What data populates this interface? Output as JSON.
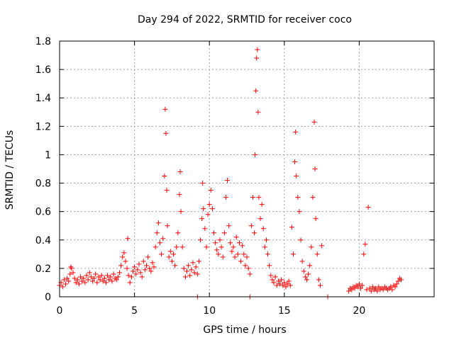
{
  "chart_data": {
    "type": "scatter",
    "title": "Day 294 of 2022, SRMTID for receiver coco",
    "xlabel": "GPS time / hours",
    "ylabel": "SRMTID / TECUs",
    "xlim": [
      0,
      25
    ],
    "ylim": [
      0,
      1.8
    ],
    "xticks": [
      0,
      5,
      10,
      15,
      20
    ],
    "xtick_labels": [
      "0",
      "5",
      "10",
      "15",
      "20"
    ],
    "yticks": [
      0,
      0.2,
      0.4,
      0.6,
      0.8,
      1.0,
      1.2,
      1.4,
      1.6,
      1.8
    ],
    "ytick_labels": [
      "0",
      "0.2",
      "0.4",
      "0.6",
      "0.8",
      "1",
      "1.2",
      "1.4",
      "1.6",
      "1.8"
    ],
    "grid": true,
    "marker": "+",
    "color": "#ff0000",
    "series": [
      {
        "name": "SRMTID",
        "points": [
          [
            0.0,
            0.08
          ],
          [
            0.1,
            0.1
          ],
          [
            0.2,
            0.07
          ],
          [
            0.3,
            0.12
          ],
          [
            0.4,
            0.09
          ],
          [
            0.5,
            0.13
          ],
          [
            0.6,
            0.11
          ],
          [
            0.7,
            0.16
          ],
          [
            0.75,
            0.21
          ],
          [
            0.8,
            0.2
          ],
          [
            0.9,
            0.17
          ],
          [
            1.0,
            0.13
          ],
          [
            1.1,
            0.1
          ],
          [
            1.2,
            0.12
          ],
          [
            1.3,
            0.09
          ],
          [
            1.4,
            0.14
          ],
          [
            1.5,
            0.11
          ],
          [
            1.6,
            0.13
          ],
          [
            1.7,
            0.1
          ],
          [
            1.8,
            0.15
          ],
          [
            1.9,
            0.12
          ],
          [
            2.0,
            0.17
          ],
          [
            2.1,
            0.14
          ],
          [
            2.2,
            0.11
          ],
          [
            2.3,
            0.13
          ],
          [
            2.4,
            0.16
          ],
          [
            2.5,
            0.1
          ],
          [
            2.6,
            0.14
          ],
          [
            2.7,
            0.12
          ],
          [
            2.8,
            0.15
          ],
          [
            2.9,
            0.11
          ],
          [
            3.0,
            0.13
          ],
          [
            3.1,
            0.1
          ],
          [
            3.2,
            0.15
          ],
          [
            3.3,
            0.12
          ],
          [
            3.4,
            0.14
          ],
          [
            3.5,
            0.11
          ],
          [
            3.6,
            0.16
          ],
          [
            3.7,
            0.13
          ],
          [
            3.8,
            0.12
          ],
          [
            3.9,
            0.14
          ],
          [
            4.0,
            0.17
          ],
          [
            4.1,
            0.22
          ],
          [
            4.2,
            0.28
          ],
          [
            4.3,
            0.31
          ],
          [
            4.4,
            0.25
          ],
          [
            4.5,
            0.2
          ],
          [
            4.55,
            0.41
          ],
          [
            4.6,
            0.15
          ],
          [
            4.7,
            0.1
          ],
          [
            4.8,
            0.14
          ],
          [
            4.9,
            0.18
          ],
          [
            5.0,
            0.21
          ],
          [
            5.1,
            0.16
          ],
          [
            5.2,
            0.19
          ],
          [
            5.3,
            0.23
          ],
          [
            5.4,
            0.17
          ],
          [
            5.5,
            0.14
          ],
          [
            5.6,
            0.25
          ],
          [
            5.7,
            0.19
          ],
          [
            5.8,
            0.22
          ],
          [
            5.9,
            0.28
          ],
          [
            6.0,
            0.2
          ],
          [
            6.1,
            0.18
          ],
          [
            6.2,
            0.24
          ],
          [
            6.3,
            0.21
          ],
          [
            6.4,
            0.35
          ],
          [
            6.5,
            0.45
          ],
          [
            6.6,
            0.52
          ],
          [
            6.7,
            0.38
          ],
          [
            6.8,
            0.3
          ],
          [
            6.9,
            0.41
          ],
          [
            7.0,
            0.85
          ],
          [
            7.05,
            1.32
          ],
          [
            7.1,
            1.15
          ],
          [
            7.15,
            0.75
          ],
          [
            7.2,
            0.5
          ],
          [
            7.3,
            0.28
          ],
          [
            7.4,
            0.32
          ],
          [
            7.5,
            0.25
          ],
          [
            7.6,
            0.3
          ],
          [
            7.7,
            0.22
          ],
          [
            7.8,
            0.35
          ],
          [
            7.9,
            0.45
          ],
          [
            8.0,
            0.72
          ],
          [
            8.05,
            0.88
          ],
          [
            8.1,
            0.6
          ],
          [
            8.2,
            0.35
          ],
          [
            8.3,
            0.2
          ],
          [
            8.4,
            0.14
          ],
          [
            8.5,
            0.18
          ],
          [
            8.6,
            0.22
          ],
          [
            8.7,
            0.15
          ],
          [
            8.8,
            0.19
          ],
          [
            8.9,
            0.24
          ],
          [
            9.0,
            0.17
          ],
          [
            9.1,
            0.21
          ],
          [
            9.2,
            0.16
          ],
          [
            9.3,
            0.25
          ],
          [
            9.4,
            0.4
          ],
          [
            9.5,
            0.55
          ],
          [
            9.55,
            0.8
          ],
          [
            9.6,
            0.62
          ],
          [
            9.7,
            0.48
          ],
          [
            9.8,
            0.35
          ],
          [
            9.9,
            0.58
          ],
          [
            10.0,
            0.65
          ],
          [
            10.1,
            0.75
          ],
          [
            10.2,
            0.62
          ],
          [
            10.3,
            0.45
          ],
          [
            10.4,
            0.38
          ],
          [
            10.5,
            0.33
          ],
          [
            10.6,
            0.3
          ],
          [
            10.7,
            0.4
          ],
          [
            10.8,
            0.35
          ],
          [
            10.9,
            0.28
          ],
          [
            11.0,
            0.45
          ],
          [
            11.1,
            0.7
          ],
          [
            11.2,
            0.82
          ],
          [
            11.3,
            0.5
          ],
          [
            11.4,
            0.38
          ],
          [
            11.5,
            0.32
          ],
          [
            11.6,
            0.35
          ],
          [
            11.7,
            0.28
          ],
          [
            11.8,
            0.42
          ],
          [
            11.9,
            0.3
          ],
          [
            12.0,
            0.38
          ],
          [
            12.1,
            0.25
          ],
          [
            12.2,
            0.36
          ],
          [
            12.3,
            0.3
          ],
          [
            12.4,
            0.22
          ],
          [
            12.5,
            0.28
          ],
          [
            12.6,
            0.2
          ],
          [
            12.7,
            0.16
          ],
          [
            12.8,
            0.5
          ],
          [
            12.9,
            0.7
          ],
          [
            13.0,
            0.45
          ],
          [
            13.05,
            1.0
          ],
          [
            13.1,
            1.45
          ],
          [
            13.15,
            1.68
          ],
          [
            13.2,
            1.74
          ],
          [
            13.25,
            1.3
          ],
          [
            13.3,
            0.7
          ],
          [
            13.4,
            0.55
          ],
          [
            13.5,
            0.65
          ],
          [
            13.6,
            0.48
          ],
          [
            13.7,
            0.35
          ],
          [
            13.8,
            0.4
          ],
          [
            13.9,
            0.3
          ],
          [
            14.0,
            0.22
          ],
          [
            14.1,
            0.15
          ],
          [
            14.2,
            0.12
          ],
          [
            14.3,
            0.1
          ],
          [
            14.4,
            0.14
          ],
          [
            14.5,
            0.08
          ],
          [
            14.6,
            0.11
          ],
          [
            14.7,
            0.09
          ],
          [
            14.8,
            0.12
          ],
          [
            14.9,
            0.08
          ],
          [
            15.0,
            0.1
          ],
          [
            15.1,
            0.07
          ],
          [
            15.2,
            0.09
          ],
          [
            15.3,
            0.11
          ],
          [
            15.4,
            0.08
          ],
          [
            15.5,
            0.49
          ],
          [
            15.6,
            0.3
          ],
          [
            15.7,
            0.95
          ],
          [
            15.75,
            1.16
          ],
          [
            15.8,
            0.85
          ],
          [
            15.9,
            0.7
          ],
          [
            16.0,
            0.6
          ],
          [
            16.1,
            0.4
          ],
          [
            16.2,
            0.25
          ],
          [
            16.3,
            0.18
          ],
          [
            16.4,
            0.14
          ],
          [
            16.5,
            0.12
          ],
          [
            16.6,
            0.16
          ],
          [
            16.7,
            0.22
          ],
          [
            16.8,
            0.35
          ],
          [
            16.9,
            0.7
          ],
          [
            17.0,
            1.23
          ],
          [
            17.05,
            0.9
          ],
          [
            17.1,
            0.55
          ],
          [
            17.2,
            0.3
          ],
          [
            17.3,
            0.12
          ],
          [
            17.4,
            0.08
          ],
          [
            17.5,
            0.36
          ],
          [
            19.3,
            0.04
          ],
          [
            19.4,
            0.06
          ],
          [
            19.5,
            0.05
          ],
          [
            19.6,
            0.07
          ],
          [
            19.7,
            0.06
          ],
          [
            19.8,
            0.08
          ],
          [
            19.9,
            0.07
          ],
          [
            20.0,
            0.09
          ],
          [
            20.1,
            0.06
          ],
          [
            20.2,
            0.08
          ],
          [
            20.3,
            0.3
          ],
          [
            20.4,
            0.37
          ],
          [
            20.5,
            0.05
          ],
          [
            20.6,
            0.63
          ],
          [
            20.7,
            0.06
          ],
          [
            20.8,
            0.04
          ],
          [
            20.9,
            0.07
          ],
          [
            21.0,
            0.05
          ],
          [
            21.1,
            0.06
          ],
          [
            21.2,
            0.04
          ],
          [
            21.3,
            0.07
          ],
          [
            21.4,
            0.05
          ],
          [
            21.5,
            0.06
          ],
          [
            21.6,
            0.05
          ],
          [
            21.7,
            0.07
          ],
          [
            21.8,
            0.06
          ],
          [
            21.9,
            0.05
          ],
          [
            22.0,
            0.06
          ],
          [
            22.1,
            0.07
          ],
          [
            22.2,
            0.05
          ],
          [
            22.3,
            0.08
          ],
          [
            22.4,
            0.07
          ],
          [
            22.5,
            0.09
          ],
          [
            22.6,
            0.11
          ],
          [
            22.7,
            0.13
          ],
          [
            22.8,
            0.12
          ],
          [
            9.2,
            0.0
          ],
          [
            12.7,
            0.0
          ],
          [
            17.9,
            0.0
          ]
        ]
      }
    ]
  }
}
